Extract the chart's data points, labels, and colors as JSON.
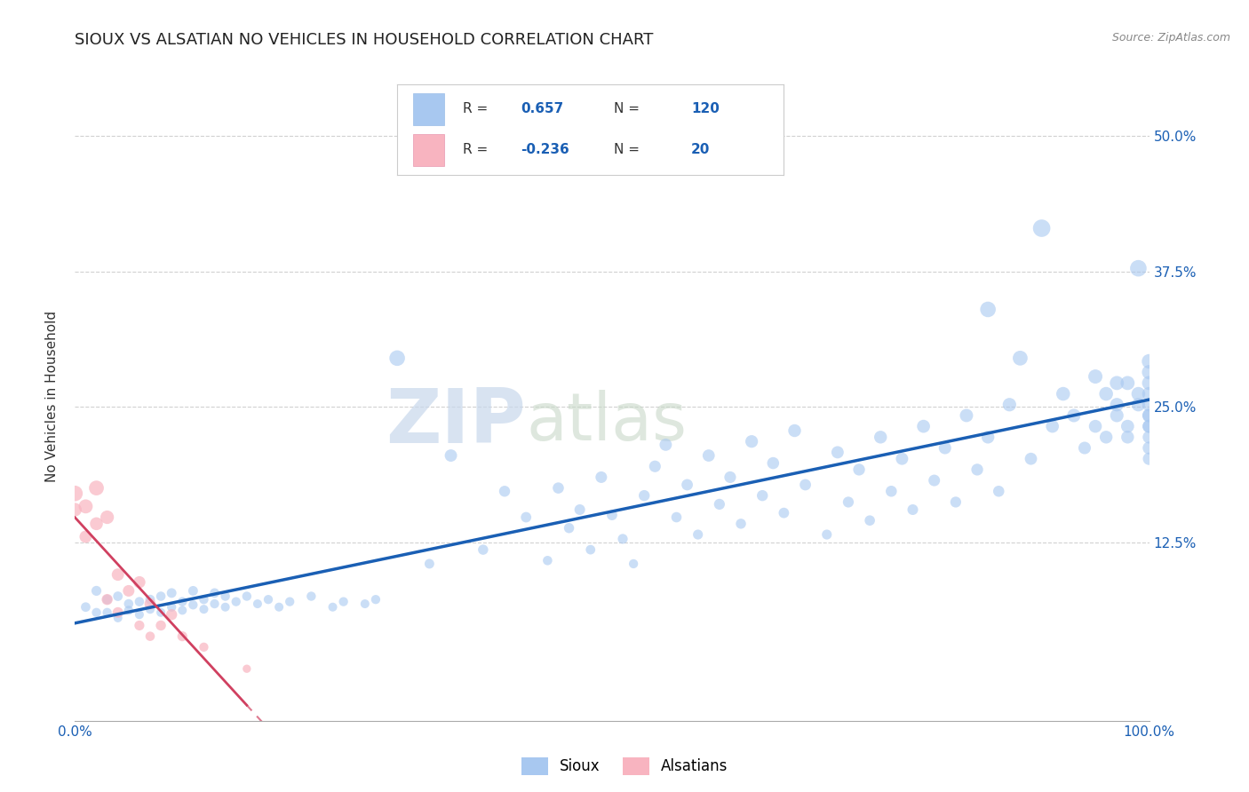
{
  "title": "SIOUX VS ALSATIAN NO VEHICLES IN HOUSEHOLD CORRELATION CHART",
  "source": "Source: ZipAtlas.com",
  "ylabel": "No Vehicles in Household",
  "x_min": 0.0,
  "x_max": 1.0,
  "y_min": -0.04,
  "y_max": 0.56,
  "legend_R1": "0.657",
  "legend_N1": "120",
  "legend_R2": "-0.236",
  "legend_N2": "20",
  "sioux_color": "#a8c8f0",
  "alsatian_color": "#f8b4c0",
  "sioux_line_color": "#1a5fb4",
  "alsatian_line_color": "#d04060",
  "background_color": "#ffffff",
  "watermark_zip": "ZIP",
  "watermark_atlas": "atlas",
  "title_fontsize": 13,
  "axis_label_fontsize": 11,
  "tick_fontsize": 11,
  "sioux_points": [
    [
      0.01,
      0.065
    ],
    [
      0.02,
      0.06
    ],
    [
      0.02,
      0.08
    ],
    [
      0.03,
      0.06
    ],
    [
      0.03,
      0.072
    ],
    [
      0.04,
      0.055
    ],
    [
      0.04,
      0.075
    ],
    [
      0.05,
      0.062
    ],
    [
      0.05,
      0.068
    ],
    [
      0.06,
      0.058
    ],
    [
      0.06,
      0.07
    ],
    [
      0.07,
      0.063
    ],
    [
      0.07,
      0.072
    ],
    [
      0.08,
      0.06
    ],
    [
      0.08,
      0.075
    ],
    [
      0.09,
      0.065
    ],
    [
      0.09,
      0.078
    ],
    [
      0.1,
      0.062
    ],
    [
      0.1,
      0.07
    ],
    [
      0.11,
      0.067
    ],
    [
      0.11,
      0.08
    ],
    [
      0.12,
      0.063
    ],
    [
      0.12,
      0.072
    ],
    [
      0.13,
      0.068
    ],
    [
      0.13,
      0.078
    ],
    [
      0.14,
      0.065
    ],
    [
      0.14,
      0.075
    ],
    [
      0.15,
      0.07
    ],
    [
      0.16,
      0.075
    ],
    [
      0.17,
      0.068
    ],
    [
      0.18,
      0.072
    ],
    [
      0.19,
      0.065
    ],
    [
      0.2,
      0.07
    ],
    [
      0.22,
      0.075
    ],
    [
      0.24,
      0.065
    ],
    [
      0.25,
      0.07
    ],
    [
      0.27,
      0.068
    ],
    [
      0.28,
      0.072
    ],
    [
      0.3,
      0.295
    ],
    [
      0.33,
      0.105
    ],
    [
      0.35,
      0.205
    ],
    [
      0.38,
      0.118
    ],
    [
      0.4,
      0.172
    ],
    [
      0.42,
      0.148
    ],
    [
      0.44,
      0.108
    ],
    [
      0.45,
      0.175
    ],
    [
      0.46,
      0.138
    ],
    [
      0.47,
      0.155
    ],
    [
      0.48,
      0.118
    ],
    [
      0.49,
      0.185
    ],
    [
      0.5,
      0.15
    ],
    [
      0.51,
      0.128
    ],
    [
      0.52,
      0.105
    ],
    [
      0.53,
      0.168
    ],
    [
      0.54,
      0.195
    ],
    [
      0.55,
      0.215
    ],
    [
      0.56,
      0.148
    ],
    [
      0.57,
      0.178
    ],
    [
      0.58,
      0.132
    ],
    [
      0.59,
      0.205
    ],
    [
      0.6,
      0.16
    ],
    [
      0.61,
      0.185
    ],
    [
      0.62,
      0.142
    ],
    [
      0.63,
      0.218
    ],
    [
      0.64,
      0.168
    ],
    [
      0.65,
      0.198
    ],
    [
      0.66,
      0.152
    ],
    [
      0.67,
      0.228
    ],
    [
      0.68,
      0.178
    ],
    [
      0.7,
      0.132
    ],
    [
      0.71,
      0.208
    ],
    [
      0.72,
      0.162
    ],
    [
      0.73,
      0.192
    ],
    [
      0.74,
      0.145
    ],
    [
      0.75,
      0.222
    ],
    [
      0.76,
      0.172
    ],
    [
      0.77,
      0.202
    ],
    [
      0.78,
      0.155
    ],
    [
      0.79,
      0.232
    ],
    [
      0.8,
      0.182
    ],
    [
      0.81,
      0.212
    ],
    [
      0.82,
      0.162
    ],
    [
      0.83,
      0.242
    ],
    [
      0.84,
      0.192
    ],
    [
      0.85,
      0.222
    ],
    [
      0.85,
      0.34
    ],
    [
      0.86,
      0.172
    ],
    [
      0.87,
      0.252
    ],
    [
      0.88,
      0.295
    ],
    [
      0.89,
      0.202
    ],
    [
      0.9,
      0.415
    ],
    [
      0.91,
      0.232
    ],
    [
      0.92,
      0.262
    ],
    [
      0.93,
      0.242
    ],
    [
      0.94,
      0.212
    ],
    [
      0.95,
      0.278
    ],
    [
      0.95,
      0.232
    ],
    [
      0.96,
      0.262
    ],
    [
      0.96,
      0.222
    ],
    [
      0.97,
      0.252
    ],
    [
      0.97,
      0.272
    ],
    [
      0.97,
      0.242
    ],
    [
      0.98,
      0.232
    ],
    [
      0.98,
      0.272
    ],
    [
      0.98,
      0.222
    ],
    [
      0.99,
      0.252
    ],
    [
      0.99,
      0.378
    ],
    [
      0.99,
      0.262
    ],
    [
      1.0,
      0.242
    ],
    [
      1.0,
      0.222
    ],
    [
      1.0,
      0.252
    ],
    [
      1.0,
      0.292
    ],
    [
      1.0,
      0.232
    ],
    [
      1.0,
      0.272
    ],
    [
      1.0,
      0.212
    ],
    [
      1.0,
      0.242
    ],
    [
      1.0,
      0.262
    ],
    [
      1.0,
      0.202
    ],
    [
      1.0,
      0.282
    ],
    [
      1.0,
      0.232
    ]
  ],
  "alsatian_points": [
    [
      0.0,
      0.155
    ],
    [
      0.0,
      0.17
    ],
    [
      0.01,
      0.13
    ],
    [
      0.01,
      0.158
    ],
    [
      0.02,
      0.142
    ],
    [
      0.02,
      0.175
    ],
    [
      0.03,
      0.072
    ],
    [
      0.03,
      0.148
    ],
    [
      0.04,
      0.06
    ],
    [
      0.04,
      0.095
    ],
    [
      0.05,
      0.08
    ],
    [
      0.06,
      0.048
    ],
    [
      0.06,
      0.088
    ],
    [
      0.07,
      0.038
    ],
    [
      0.07,
      0.068
    ],
    [
      0.08,
      0.048
    ],
    [
      0.09,
      0.058
    ],
    [
      0.1,
      0.038
    ],
    [
      0.12,
      0.028
    ],
    [
      0.16,
      0.008
    ]
  ],
  "sioux_sizes": [
    60,
    55,
    65,
    55,
    62,
    52,
    60,
    55,
    58,
    52,
    58,
    54,
    60,
    52,
    58,
    55,
    62,
    52,
    56,
    55,
    62,
    52,
    56,
    55,
    60,
    52,
    56,
    55,
    56,
    52,
    55,
    52,
    55,
    56,
    52,
    55,
    52,
    55,
    160,
    62,
    100,
    68,
    80,
    72,
    58,
    82,
    68,
    75,
    60,
    88,
    72,
    65,
    55,
    80,
    90,
    100,
    70,
    85,
    65,
    98,
    78,
    90,
    68,
    105,
    80,
    95,
    72,
    108,
    85,
    65,
    100,
    78,
    92,
    70,
    108,
    82,
    100,
    75,
    112,
    88,
    102,
    78,
    115,
    92,
    108,
    160,
    82,
    120,
    145,
    98,
    200,
    110,
    125,
    118,
    102,
    132,
    110,
    125,
    108,
    120,
    130,
    118,
    112,
    130,
    108,
    120,
    180,
    125,
    118,
    108,
    122,
    140,
    112,
    130,
    108,
    118,
    125,
    102,
    135,
    112
  ],
  "alsatian_sizes": [
    120,
    160,
    100,
    130,
    110,
    145,
    80,
    120,
    75,
    100,
    88,
    65,
    95,
    58,
    85,
    68,
    80,
    65,
    55,
    45
  ]
}
